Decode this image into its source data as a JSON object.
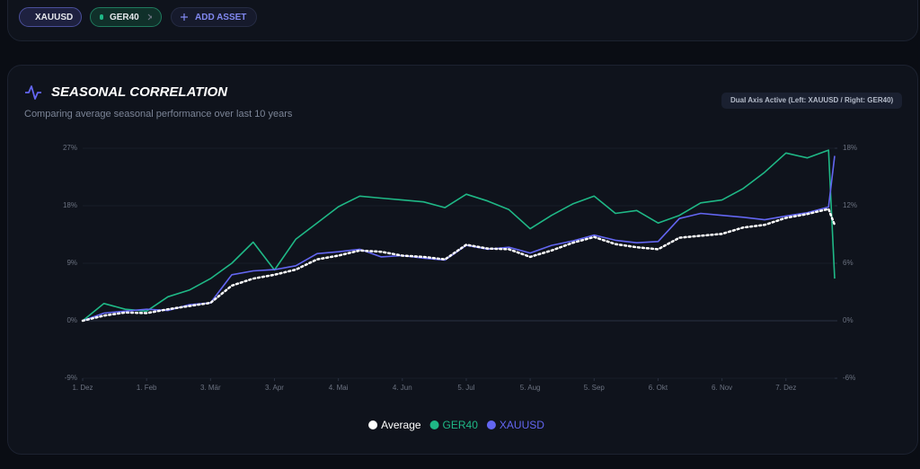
{
  "toolbar": {
    "assets": [
      "XAUUSD",
      "GER40"
    ],
    "add_button": "ADD ASSET"
  },
  "panel": {
    "title": "SEASONAL CORRELATION",
    "subtitle": "Comparing average seasonal performance over last 10 years",
    "badge": "Dual Axis Active (Left: XAUUSD / Right: GER40)"
  },
  "chart_data": {
    "type": "line",
    "x": [
      0,
      7,
      14,
      21,
      28,
      35,
      42,
      49,
      56,
      63,
      70,
      77,
      84,
      91,
      98,
      105,
      112,
      119,
      126,
      133,
      140,
      147,
      154,
      161,
      168,
      175,
      182,
      189,
      196,
      203,
      210,
      217,
      224,
      231,
      238,
      245,
      247
    ],
    "xlim": [
      0,
      247
    ],
    "xticks": [
      {
        "value": 0,
        "label": "1. Dez"
      },
      {
        "value": 21,
        "label": "1. Feb"
      },
      {
        "value": 42,
        "label": "3. Mär"
      },
      {
        "value": 63,
        "label": "3. Apr"
      },
      {
        "value": 84,
        "label": "4. Mai"
      },
      {
        "value": 105,
        "label": "4. Jun"
      },
      {
        "value": 126,
        "label": "5. Jul"
      },
      {
        "value": 147,
        "label": "5. Aug"
      },
      {
        "value": 168,
        "label": "5. Sep"
      },
      {
        "value": 189,
        "label": "6. Okt"
      },
      {
        "value": 210,
        "label": "6. Nov"
      },
      {
        "value": 231,
        "label": "7. Dez"
      }
    ],
    "ylim": [
      -9,
      27
    ],
    "yticks": [
      {
        "value": -9,
        "label": "-9%"
      },
      {
        "value": 0,
        "label": "0%"
      },
      {
        "value": 9,
        "label": "9%"
      },
      {
        "value": 18,
        "label": "18%"
      },
      {
        "value": 27,
        "label": "27%"
      }
    ],
    "y2lim": [
      -6,
      18
    ],
    "y2ticks": [
      {
        "value": -6,
        "label": "-6%"
      },
      {
        "value": 0,
        "label": "0%"
      },
      {
        "value": 6,
        "label": "6%"
      },
      {
        "value": 12,
        "label": "12%"
      },
      {
        "value": 18,
        "label": "18%"
      }
    ],
    "grid": true,
    "legend": "bottom",
    "series": [
      {
        "name": "Average",
        "color": "#ffffff",
        "dash": "dotted",
        "values": [
          0,
          0.8,
          1.3,
          1.2,
          1.8,
          2.3,
          2.8,
          5.5,
          6.6,
          7.2,
          8.0,
          9.6,
          10.2,
          11.0,
          10.8,
          10.2,
          10.0,
          9.6,
          11.9,
          11.3,
          11.2,
          10.0,
          11.0,
          12.2,
          13.1,
          12.0,
          11.5,
          11.2,
          13.0,
          13.3,
          13.6,
          14.6,
          15.0,
          16.1,
          16.7,
          17.5,
          15.0
        ]
      },
      {
        "name": "GER40",
        "color": "#1fb886",
        "axis": "y2",
        "values": [
          0,
          1.8,
          1.2,
          1.0,
          2.5,
          3.2,
          4.4,
          6.0,
          8.2,
          5.3,
          8.5,
          10.2,
          11.9,
          13.0,
          12.8,
          12.6,
          12.4,
          11.8,
          13.2,
          12.5,
          11.6,
          9.6,
          11.0,
          12.2,
          13.0,
          11.2,
          11.5,
          10.2,
          11.0,
          12.3,
          12.6,
          13.8,
          15.5,
          17.5,
          17.0,
          17.8,
          4.4
        ]
      },
      {
        "name": "XAUUSD",
        "color": "#6366f1",
        "values": [
          0,
          1.2,
          1.5,
          1.8,
          1.6,
          2.5,
          2.8,
          7.2,
          7.8,
          8.0,
          8.6,
          10.5,
          10.8,
          11.2,
          10.0,
          10.2,
          9.8,
          9.5,
          11.8,
          11.2,
          11.5,
          10.6,
          11.8,
          12.5,
          13.4,
          12.6,
          12.2,
          12.4,
          16.0,
          16.8,
          16.5,
          16.2,
          15.8,
          16.4,
          16.9,
          17.8,
          25.8
        ]
      }
    ]
  }
}
